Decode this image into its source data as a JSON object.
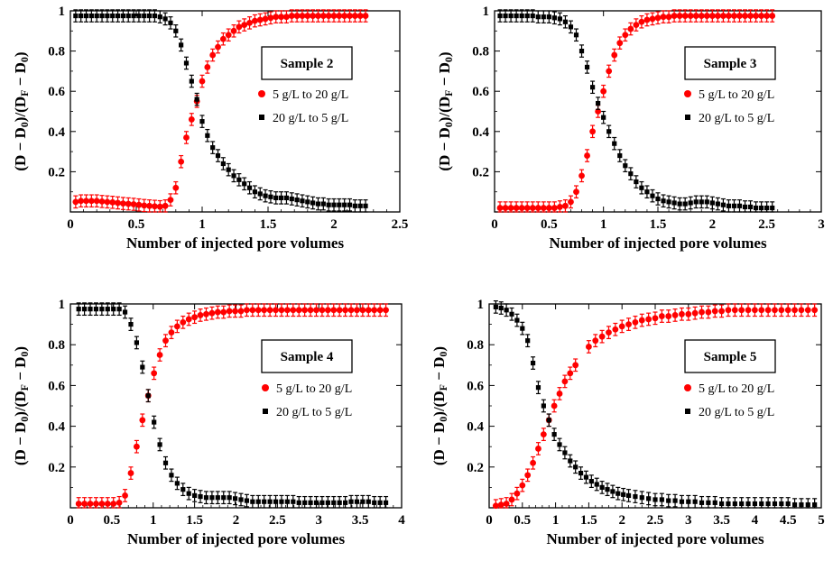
{
  "colors": {
    "series_up": "#ff0000",
    "series_down": "#000000",
    "axes": "#000000"
  },
  "chart_data": [
    {
      "type": "scatter",
      "title": "",
      "panel_label": "Sample 2",
      "xlabel": "Number of injected pore volumes",
      "ylabel_parts": [
        "(D − D",
        "0",
        ")/(D",
        "F",
        " − D",
        "0",
        ")"
      ],
      "xlim": [
        0,
        2.5
      ],
      "ylim": [
        0,
        1
      ],
      "xticks": [
        0,
        0.5,
        1,
        1.5,
        2,
        2.5
      ],
      "yticks": [
        0.2,
        0.4,
        0.6,
        0.8,
        1
      ],
      "grid": false,
      "legend_position": "right-middle",
      "series": [
        {
          "name": "5 g/L to 20 g/L",
          "color": "#ff0000",
          "marker": "circle",
          "x": [
            0.04,
            0.08,
            0.12,
            0.16,
            0.2,
            0.24,
            0.28,
            0.32,
            0.36,
            0.4,
            0.44,
            0.48,
            0.52,
            0.56,
            0.6,
            0.64,
            0.68,
            0.72,
            0.76,
            0.8,
            0.84,
            0.88,
            0.92,
            0.96,
            1.0,
            1.04,
            1.08,
            1.12,
            1.16,
            1.2,
            1.24,
            1.28,
            1.32,
            1.36,
            1.4,
            1.44,
            1.48,
            1.52,
            1.56,
            1.6,
            1.64,
            1.68,
            1.72,
            1.76,
            1.8,
            1.84,
            1.88,
            1.92,
            1.96,
            2.0,
            2.04,
            2.08,
            2.12,
            2.16,
            2.2,
            2.24
          ],
          "y": [
            0.05,
            0.055,
            0.055,
            0.055,
            0.055,
            0.052,
            0.05,
            0.048,
            0.045,
            0.042,
            0.04,
            0.038,
            0.035,
            0.032,
            0.03,
            0.028,
            0.026,
            0.03,
            0.06,
            0.12,
            0.25,
            0.37,
            0.46,
            0.55,
            0.65,
            0.72,
            0.78,
            0.82,
            0.86,
            0.88,
            0.9,
            0.92,
            0.93,
            0.94,
            0.95,
            0.955,
            0.96,
            0.965,
            0.97,
            0.97,
            0.97,
            0.975,
            0.975,
            0.975,
            0.975,
            0.975,
            0.975,
            0.975,
            0.975,
            0.975,
            0.975,
            0.975,
            0.975,
            0.975,
            0.975,
            0.975
          ],
          "error": 0.03
        },
        {
          "name": "20 g/L to 5 g/L",
          "color": "#000000",
          "marker": "square",
          "x": [
            0.04,
            0.08,
            0.12,
            0.16,
            0.2,
            0.24,
            0.28,
            0.32,
            0.36,
            0.4,
            0.44,
            0.48,
            0.52,
            0.56,
            0.6,
            0.64,
            0.68,
            0.72,
            0.76,
            0.8,
            0.84,
            0.88,
            0.92,
            0.96,
            1.0,
            1.04,
            1.08,
            1.12,
            1.16,
            1.2,
            1.24,
            1.28,
            1.32,
            1.36,
            1.4,
            1.44,
            1.48,
            1.52,
            1.56,
            1.6,
            1.64,
            1.68,
            1.72,
            1.76,
            1.8,
            1.84,
            1.88,
            1.92,
            1.96,
            2.0,
            2.04,
            2.08,
            2.12,
            2.16,
            2.2,
            2.24
          ],
          "y": [
            0.975,
            0.975,
            0.975,
            0.975,
            0.975,
            0.975,
            0.975,
            0.975,
            0.975,
            0.975,
            0.975,
            0.975,
            0.975,
            0.975,
            0.975,
            0.975,
            0.97,
            0.96,
            0.94,
            0.9,
            0.83,
            0.74,
            0.65,
            0.56,
            0.45,
            0.38,
            0.32,
            0.28,
            0.24,
            0.21,
            0.18,
            0.16,
            0.14,
            0.12,
            0.1,
            0.09,
            0.08,
            0.075,
            0.07,
            0.07,
            0.07,
            0.065,
            0.06,
            0.055,
            0.05,
            0.045,
            0.04,
            0.04,
            0.035,
            0.035,
            0.035,
            0.035,
            0.035,
            0.03,
            0.03,
            0.03
          ],
          "error": 0.03
        }
      ]
    },
    {
      "type": "scatter",
      "title": "",
      "panel_label": "Sample 3",
      "xlabel": "Number of injected pore volumes",
      "ylabel_parts": [
        "(D − D",
        "0",
        ")/(D",
        "F",
        " − D",
        "0",
        ")"
      ],
      "xlim": [
        0,
        3
      ],
      "ylim": [
        0,
        1
      ],
      "xticks": [
        0,
        0.5,
        1,
        1.5,
        2,
        2.5,
        3
      ],
      "yticks": [
        0.2,
        0.4,
        0.6,
        0.8,
        1
      ],
      "grid": false,
      "legend_position": "right-middle",
      "series": [
        {
          "name": "5 g/L to 20 g/L",
          "color": "#ff0000",
          "marker": "circle",
          "x": [
            0.05,
            0.1,
            0.15,
            0.2,
            0.25,
            0.3,
            0.35,
            0.4,
            0.45,
            0.5,
            0.55,
            0.6,
            0.65,
            0.7,
            0.75,
            0.8,
            0.85,
            0.9,
            0.95,
            1.0,
            1.05,
            1.1,
            1.15,
            1.2,
            1.25,
            1.3,
            1.35,
            1.4,
            1.45,
            1.5,
            1.55,
            1.6,
            1.65,
            1.7,
            1.75,
            1.8,
            1.85,
            1.9,
            1.95,
            2.0,
            2.05,
            2.1,
            2.15,
            2.2,
            2.25,
            2.3,
            2.35,
            2.4,
            2.45,
            2.5,
            2.55
          ],
          "y": [
            0.02,
            0.02,
            0.02,
            0.02,
            0.02,
            0.02,
            0.02,
            0.02,
            0.02,
            0.02,
            0.02,
            0.025,
            0.03,
            0.05,
            0.1,
            0.18,
            0.28,
            0.4,
            0.5,
            0.6,
            0.7,
            0.78,
            0.84,
            0.88,
            0.91,
            0.93,
            0.945,
            0.955,
            0.96,
            0.965,
            0.97,
            0.97,
            0.975,
            0.975,
            0.975,
            0.975,
            0.975,
            0.975,
            0.975,
            0.975,
            0.975,
            0.975,
            0.975,
            0.975,
            0.975,
            0.975,
            0.975,
            0.975,
            0.975,
            0.975,
            0.975
          ],
          "error": 0.03
        },
        {
          "name": "20 g/L to 5 g/L",
          "color": "#000000",
          "marker": "square",
          "x": [
            0.05,
            0.1,
            0.15,
            0.2,
            0.25,
            0.3,
            0.35,
            0.4,
            0.45,
            0.5,
            0.55,
            0.6,
            0.65,
            0.7,
            0.75,
            0.8,
            0.85,
            0.9,
            0.95,
            1.0,
            1.05,
            1.1,
            1.15,
            1.2,
            1.25,
            1.3,
            1.35,
            1.4,
            1.45,
            1.5,
            1.55,
            1.6,
            1.65,
            1.7,
            1.75,
            1.8,
            1.85,
            1.9,
            1.95,
            2.0,
            2.05,
            2.1,
            2.15,
            2.2,
            2.25,
            2.3,
            2.35,
            2.4,
            2.45,
            2.5,
            2.55
          ],
          "y": [
            0.975,
            0.975,
            0.975,
            0.975,
            0.975,
            0.975,
            0.975,
            0.97,
            0.97,
            0.97,
            0.965,
            0.96,
            0.945,
            0.92,
            0.88,
            0.8,
            0.72,
            0.62,
            0.54,
            0.47,
            0.4,
            0.34,
            0.28,
            0.23,
            0.19,
            0.15,
            0.12,
            0.1,
            0.08,
            0.065,
            0.055,
            0.05,
            0.045,
            0.04,
            0.04,
            0.045,
            0.05,
            0.05,
            0.05,
            0.045,
            0.04,
            0.035,
            0.03,
            0.03,
            0.03,
            0.025,
            0.025,
            0.02,
            0.02,
            0.02,
            0.02
          ],
          "error": 0.03
        }
      ]
    },
    {
      "type": "scatter",
      "title": "",
      "panel_label": "Sample 4",
      "xlabel": "Number of injected pore volumes",
      "ylabel_parts": [
        "(D − D",
        "0",
        ")/(D",
        "F",
        " − D",
        "0",
        ")"
      ],
      "xlim": [
        0,
        4
      ],
      "ylim": [
        0,
        1
      ],
      "xticks": [
        0,
        0.5,
        1,
        1.5,
        2,
        2.5,
        3,
        3.5,
        4
      ],
      "yticks": [
        0.2,
        0.4,
        0.6,
        0.8,
        1
      ],
      "grid": false,
      "legend_position": "right-middle",
      "series": [
        {
          "name": "5 g/L to 20 g/L",
          "color": "#ff0000",
          "marker": "circle",
          "x": [
            0.1,
            0.17,
            0.24,
            0.31,
            0.38,
            0.45,
            0.52,
            0.59,
            0.66,
            0.73,
            0.8,
            0.87,
            0.94,
            1.01,
            1.08,
            1.15,
            1.22,
            1.29,
            1.36,
            1.43,
            1.5,
            1.57,
            1.64,
            1.71,
            1.78,
            1.85,
            1.92,
            1.99,
            2.06,
            2.13,
            2.2,
            2.27,
            2.34,
            2.41,
            2.48,
            2.55,
            2.62,
            2.69,
            2.76,
            2.83,
            2.9,
            2.97,
            3.04,
            3.11,
            3.18,
            3.25,
            3.32,
            3.39,
            3.46,
            3.53,
            3.6,
            3.67,
            3.74,
            3.81
          ],
          "y": [
            0.02,
            0.02,
            0.02,
            0.02,
            0.02,
            0.02,
            0.02,
            0.025,
            0.06,
            0.17,
            0.3,
            0.43,
            0.55,
            0.66,
            0.75,
            0.82,
            0.86,
            0.89,
            0.91,
            0.925,
            0.935,
            0.945,
            0.95,
            0.955,
            0.96,
            0.96,
            0.965,
            0.965,
            0.965,
            0.97,
            0.97,
            0.97,
            0.97,
            0.97,
            0.97,
            0.97,
            0.97,
            0.97,
            0.97,
            0.97,
            0.97,
            0.97,
            0.97,
            0.97,
            0.97,
            0.97,
            0.97,
            0.97,
            0.97,
            0.97,
            0.97,
            0.97,
            0.97,
            0.97
          ],
          "error": 0.03
        },
        {
          "name": "20 g/L to 5 g/L",
          "color": "#000000",
          "marker": "square",
          "x": [
            0.1,
            0.17,
            0.24,
            0.31,
            0.38,
            0.45,
            0.52,
            0.59,
            0.66,
            0.73,
            0.8,
            0.87,
            0.94,
            1.01,
            1.08,
            1.15,
            1.22,
            1.29,
            1.36,
            1.43,
            1.5,
            1.57,
            1.64,
            1.71,
            1.78,
            1.85,
            1.92,
            1.99,
            2.06,
            2.13,
            2.2,
            2.27,
            2.34,
            2.41,
            2.48,
            2.55,
            2.62,
            2.69,
            2.76,
            2.83,
            2.9,
            2.97,
            3.04,
            3.11,
            3.18,
            3.25,
            3.32,
            3.39,
            3.46,
            3.53,
            3.6,
            3.67,
            3.74,
            3.81
          ],
          "y": [
            0.975,
            0.975,
            0.975,
            0.975,
            0.975,
            0.975,
            0.975,
            0.975,
            0.96,
            0.9,
            0.81,
            0.69,
            0.55,
            0.42,
            0.31,
            0.22,
            0.16,
            0.12,
            0.09,
            0.07,
            0.06,
            0.055,
            0.05,
            0.05,
            0.05,
            0.05,
            0.05,
            0.045,
            0.04,
            0.035,
            0.03,
            0.03,
            0.03,
            0.03,
            0.03,
            0.03,
            0.03,
            0.03,
            0.025,
            0.025,
            0.025,
            0.025,
            0.025,
            0.025,
            0.025,
            0.025,
            0.025,
            0.03,
            0.03,
            0.03,
            0.03,
            0.025,
            0.025,
            0.025
          ],
          "error": 0.03
        }
      ]
    },
    {
      "type": "scatter",
      "title": "",
      "panel_label": "Sample 5",
      "xlabel": "Number of injected pore volumes",
      "ylabel_parts": [
        "(D − D",
        "0",
        ")/(D",
        "F",
        " − D",
        "0",
        ")"
      ],
      "xlim": [
        0,
        5
      ],
      "ylim": [
        0,
        1
      ],
      "xticks": [
        0,
        0.5,
        1,
        1.5,
        2,
        2.5,
        3,
        3.5,
        4,
        4.5,
        5
      ],
      "yticks": [
        0.2,
        0.4,
        0.6,
        0.8,
        1
      ],
      "grid": false,
      "legend_position": "right-middle",
      "series": [
        {
          "name": "5 g/L to 20 g/L",
          "color": "#ff0000",
          "marker": "circle",
          "x": [
            0.1,
            0.18,
            0.26,
            0.34,
            0.42,
            0.5,
            0.58,
            0.66,
            0.74,
            0.82,
            0.9,
            0.98,
            1.06,
            1.14,
            1.22,
            1.3,
            1.5,
            1.6,
            1.7,
            1.8,
            1.9,
            2.0,
            2.1,
            2.2,
            2.3,
            2.4,
            2.5,
            2.6,
            2.7,
            2.8,
            2.9,
            3.0,
            3.1,
            3.2,
            3.3,
            3.4,
            3.5,
            3.6,
            3.7,
            3.8,
            3.9,
            4.0,
            4.1,
            4.2,
            4.3,
            4.4,
            4.5,
            4.6,
            4.7,
            4.8,
            4.9
          ],
          "y": [
            0.01,
            0.015,
            0.02,
            0.04,
            0.07,
            0.11,
            0.16,
            0.22,
            0.29,
            0.36,
            0.43,
            0.5,
            0.56,
            0.62,
            0.66,
            0.7,
            0.79,
            0.82,
            0.84,
            0.86,
            0.875,
            0.89,
            0.9,
            0.91,
            0.92,
            0.925,
            0.93,
            0.94,
            0.94,
            0.945,
            0.95,
            0.95,
            0.955,
            0.96,
            0.96,
            0.965,
            0.965,
            0.97,
            0.97,
            0.97,
            0.97,
            0.97,
            0.97,
            0.97,
            0.97,
            0.97,
            0.97,
            0.97,
            0.97,
            0.97,
            0.97
          ],
          "error": 0.03
        },
        {
          "name": "20 g/L to 5 g/L",
          "color": "#000000",
          "marker": "square",
          "x": [
            0.1,
            0.18,
            0.26,
            0.34,
            0.42,
            0.5,
            0.58,
            0.66,
            0.74,
            0.82,
            0.9,
            0.98,
            1.06,
            1.14,
            1.22,
            1.3,
            1.38,
            1.46,
            1.54,
            1.62,
            1.7,
            1.78,
            1.86,
            1.94,
            2.02,
            2.1,
            2.2,
            2.3,
            2.4,
            2.5,
            2.6,
            2.7,
            2.8,
            2.9,
            3.0,
            3.1,
            3.2,
            3.3,
            3.4,
            3.5,
            3.6,
            3.7,
            3.8,
            3.9,
            4.0,
            4.1,
            4.2,
            4.3,
            4.4,
            4.5,
            4.6,
            4.7,
            4.8,
            4.9
          ],
          "y": [
            0.985,
            0.98,
            0.97,
            0.95,
            0.92,
            0.88,
            0.82,
            0.71,
            0.59,
            0.5,
            0.43,
            0.36,
            0.31,
            0.27,
            0.23,
            0.2,
            0.17,
            0.15,
            0.13,
            0.115,
            0.1,
            0.09,
            0.08,
            0.07,
            0.065,
            0.06,
            0.055,
            0.05,
            0.045,
            0.04,
            0.04,
            0.035,
            0.035,
            0.03,
            0.03,
            0.03,
            0.025,
            0.025,
            0.025,
            0.02,
            0.02,
            0.02,
            0.02,
            0.02,
            0.02,
            0.02,
            0.02,
            0.02,
            0.02,
            0.02,
            0.015,
            0.015,
            0.015,
            0.015
          ],
          "error": 0.03
        }
      ]
    }
  ]
}
